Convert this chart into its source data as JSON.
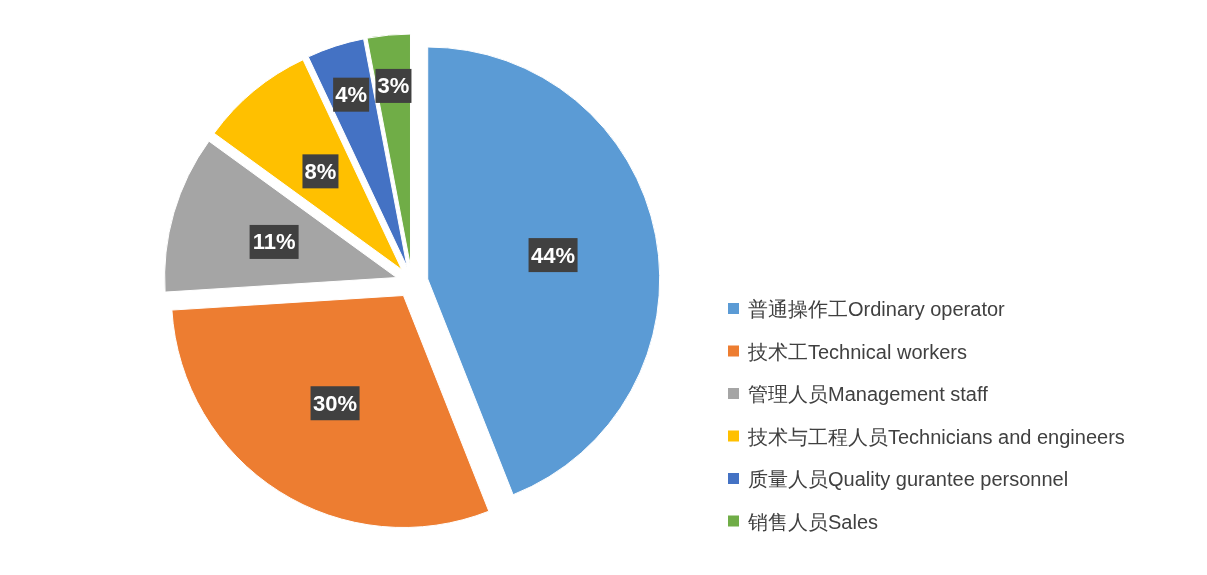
{
  "chart_data": {
    "type": "pie",
    "categories": [
      "普通操作工Ordinary operator",
      "技术工Technical workers",
      "管理人员Management staff",
      "技术与工程人员Technicians and engineers",
      "质量人员Quality gurantee personnel",
      "销售人员Sales"
    ],
    "values": [
      44,
      30,
      11,
      8,
      4,
      3
    ],
    "colors": [
      "#5b9bd5",
      "#ed7d31",
      "#a5a5a5",
      "#ffc000",
      "#4472c4",
      "#70ad47"
    ],
    "value_labels": [
      "44%",
      "30%",
      "11%",
      "8%",
      "4%",
      "3%"
    ],
    "legend": "right"
  }
}
